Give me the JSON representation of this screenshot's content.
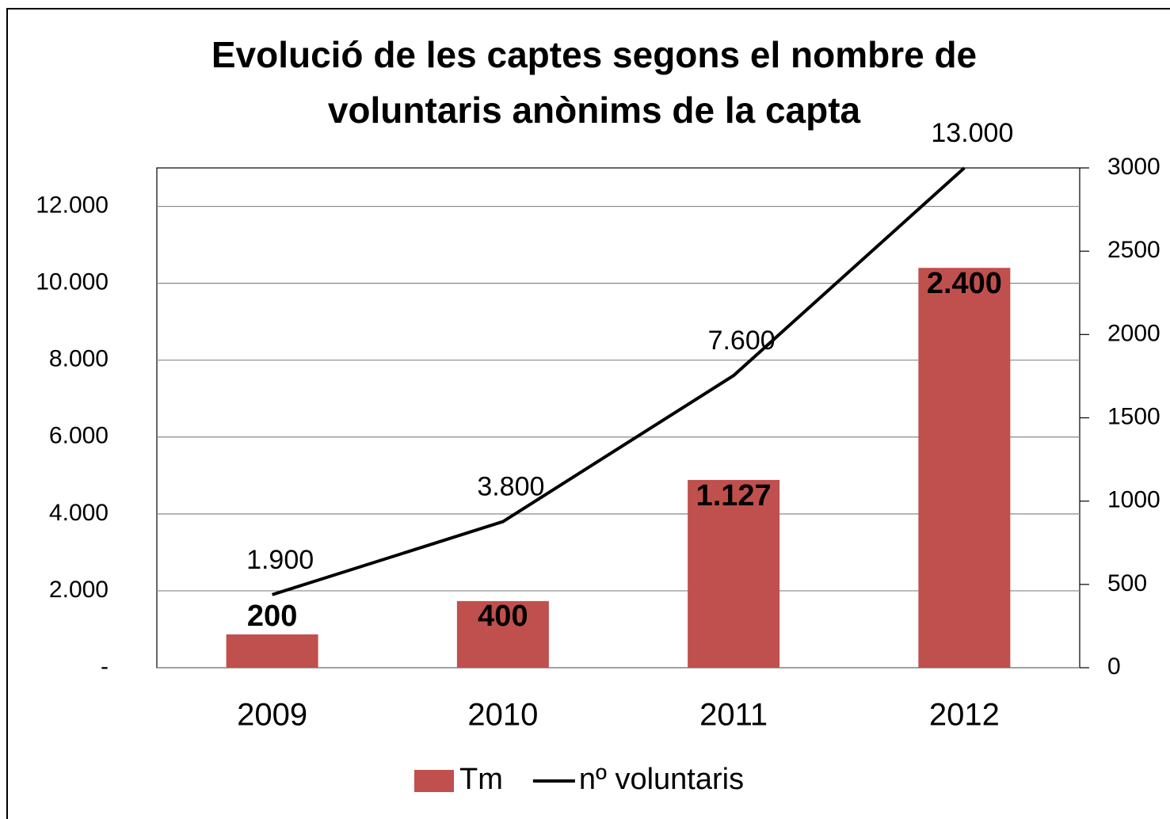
{
  "chart_data": {
    "type": "bar-line",
    "title": "Evolució de les captes segons el nombre de voluntaris anònims de la capta",
    "categories": [
      "2009",
      "2010",
      "2011",
      "2012"
    ],
    "series": [
      {
        "name": "Tm",
        "type": "bar",
        "axis": "y2",
        "color": "#c0504d",
        "values": [
          200,
          400,
          1127,
          2400
        ],
        "value_labels": [
          "200",
          "400",
          "1.127",
          "2.400"
        ]
      },
      {
        "name": "nº voluntaris",
        "type": "line",
        "color": "#000000",
        "values": [
          1900,
          3800,
          7600,
          13000
        ],
        "value_labels": [
          "1.900",
          "3.800",
          "7.600",
          "13.000"
        ]
      }
    ],
    "ylim": [
      0,
      13000
    ],
    "yticks": [
      {
        "value": 0,
        "label": "-"
      },
      {
        "value": 2000,
        "label": "2.000"
      },
      {
        "value": 4000,
        "label": "4.000"
      },
      {
        "value": 6000,
        "label": "6.000"
      },
      {
        "value": 8000,
        "label": "8.000"
      },
      {
        "value": 10000,
        "label": "10.000"
      },
      {
        "value": 12000,
        "label": "12.000"
      }
    ],
    "y2lim": [
      0,
      3000
    ],
    "y2ticks": [
      0,
      500,
      1000,
      1500,
      2000,
      2500,
      3000
    ],
    "grid": true,
    "legend": "bottom"
  }
}
